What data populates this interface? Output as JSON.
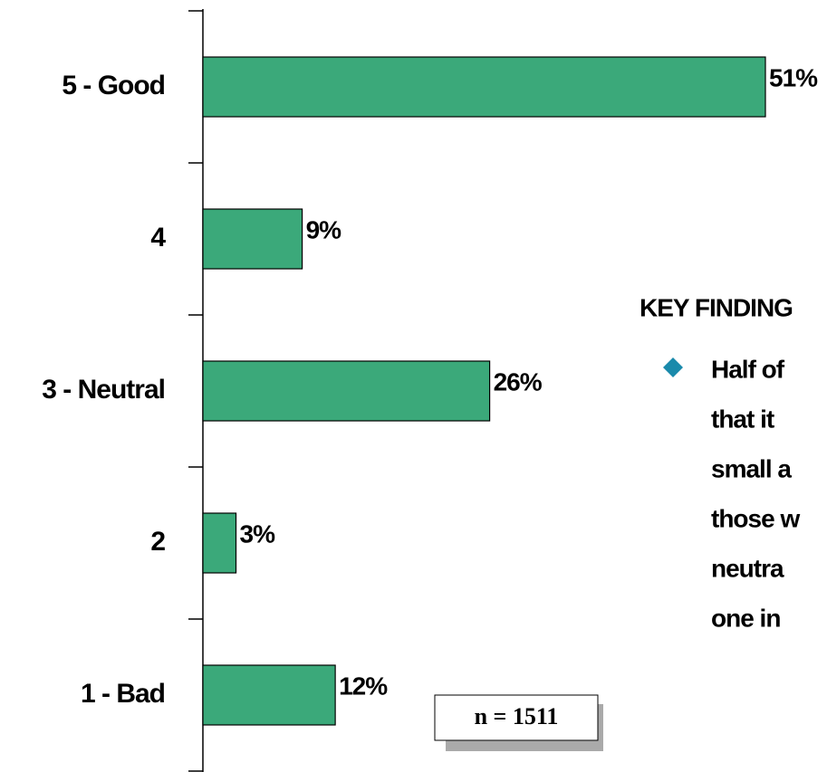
{
  "chart_data": {
    "type": "bar",
    "orientation": "horizontal",
    "categories": [
      "5 - Good",
      "4",
      "3 - Neutral",
      "2",
      "1 - Bad"
    ],
    "values": [
      51,
      9,
      26,
      3,
      12
    ],
    "value_labels": [
      "51%",
      "9%",
      "26%",
      "3%",
      "12%"
    ],
    "color": "#3ba97a",
    "note": "n = 1511"
  },
  "key_findings": {
    "title": "KEY FINDING",
    "lines": [
      "Half of",
      "that it",
      "small a",
      "those w",
      "neutra",
      "one in"
    ]
  }
}
